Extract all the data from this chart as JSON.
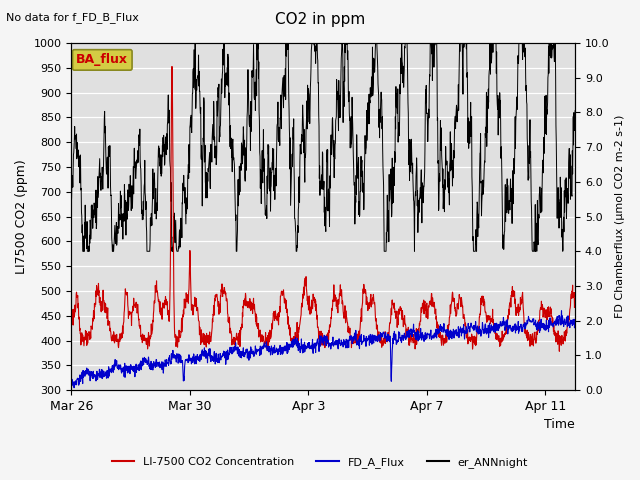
{
  "title": "CO2 in ppm",
  "top_left_text": "No data for f_FD_B_Flux",
  "ba_flux_label": "BA_flux",
  "ylabel_left": "LI7500 CO2 (ppm)",
  "ylabel_right": "FD Chamberflux (μmol CO2 m-2 s-1)",
  "xlabel": "Time",
  "ylim_left": [
    300,
    1000
  ],
  "ylim_right": [
    0.0,
    10.0
  ],
  "yticks_left": [
    300,
    350,
    400,
    450,
    500,
    550,
    600,
    650,
    700,
    750,
    800,
    850,
    900,
    950,
    1000
  ],
  "yticks_right": [
    0.0,
    1.0,
    2.0,
    3.0,
    4.0,
    5.0,
    6.0,
    7.0,
    8.0,
    9.0,
    10.0
  ],
  "x_tick_labels": [
    "Mar 26",
    "Mar 30",
    "Apr 3",
    "Apr 7",
    "Apr 11"
  ],
  "x_tick_positions": [
    0,
    96,
    192,
    288,
    384
  ],
  "legend_labels": [
    "LI-7500 CO2 Concentration",
    "FD_A_Flux",
    "er_ANNnight"
  ],
  "red_color": "#cc0000",
  "blue_color": "#0000cc",
  "black_color": "#000000",
  "bg_color": "#e0e0e0",
  "grid_color": "#ffffff",
  "ba_box_fc": "#d4cc44",
  "ba_box_ec": "#888820",
  "ba_text_color": "#cc0000",
  "total_hours": 408,
  "pts_per_hour": 4
}
